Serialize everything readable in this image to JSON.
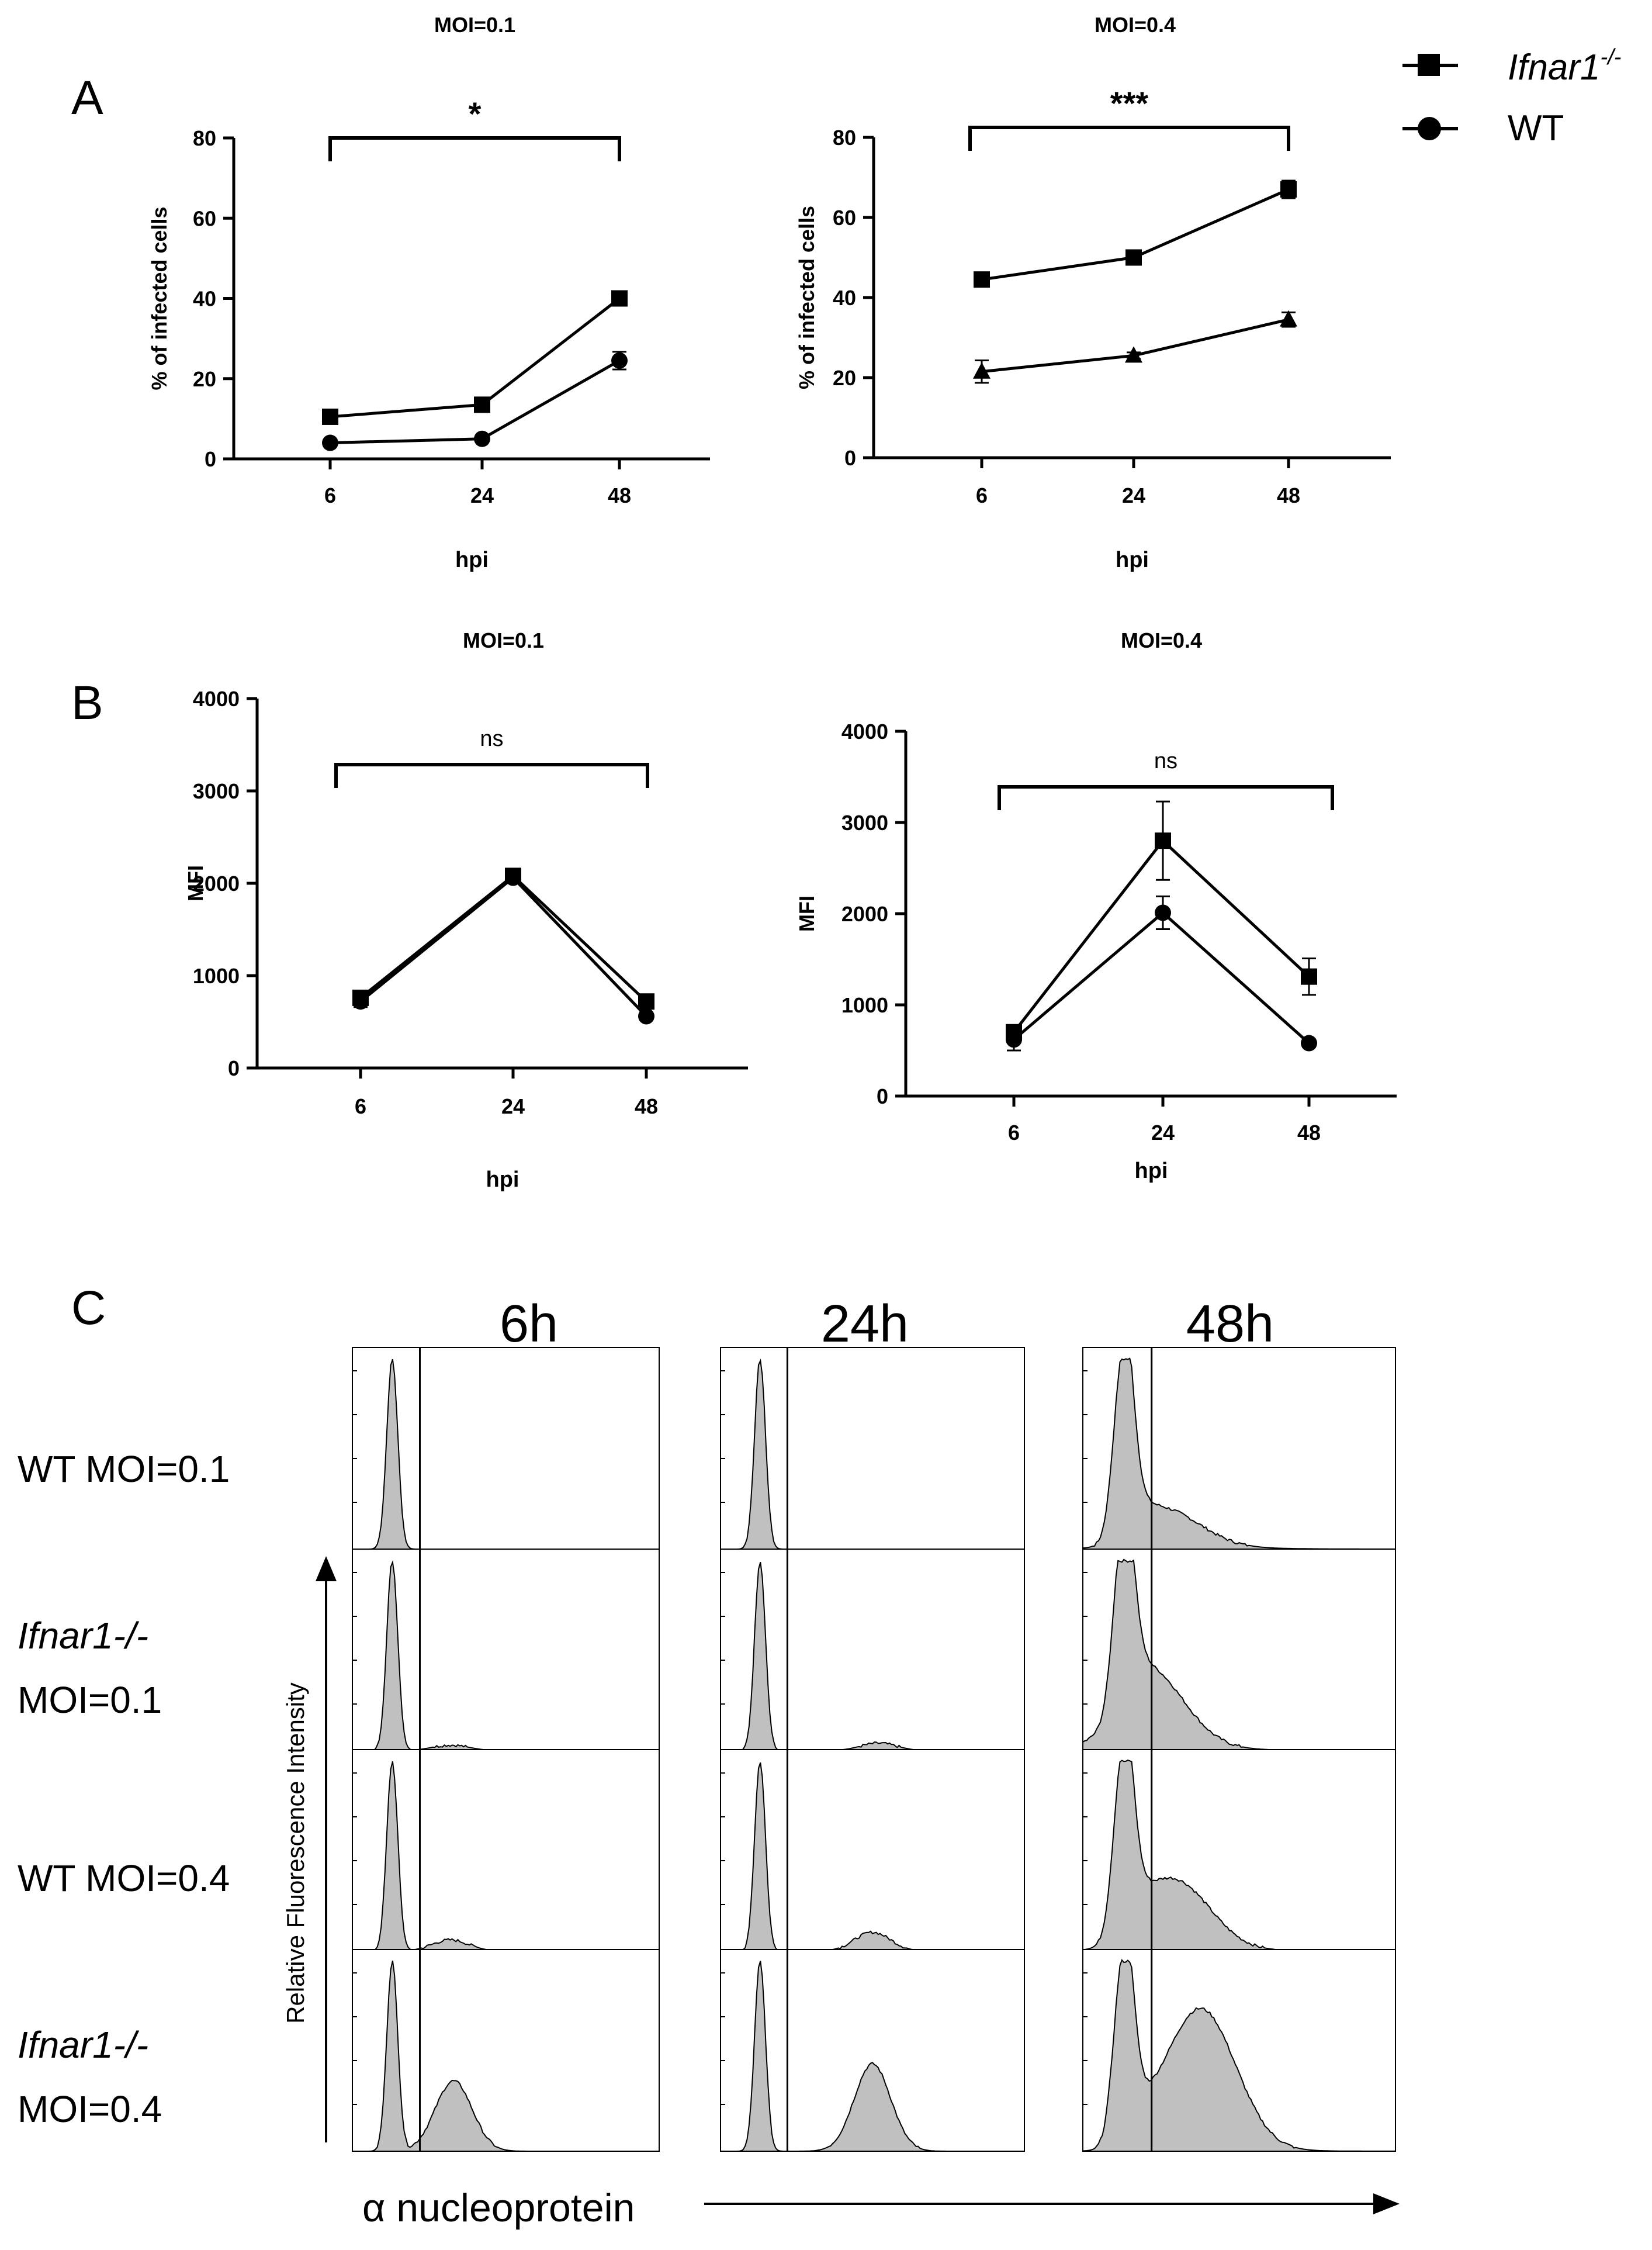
{
  "figure": {
    "legend": {
      "ko_label": "Ifnar1",
      "ko_sup": "-/-",
      "wt_label": "WT"
    },
    "panel_letters": [
      "A",
      "B",
      "C"
    ]
  },
  "chart_data": [
    {
      "id": "A1",
      "panel": "A",
      "type": "line",
      "title": "MOI=0.1",
      "xlabel": "hpi",
      "ylabel": "% of infected cells",
      "categories": [
        "6",
        "24",
        "48"
      ],
      "yticks": [
        0,
        20,
        40,
        60,
        80
      ],
      "ylim": [
        0,
        80
      ],
      "significance": "*",
      "series": [
        {
          "name": "Ifnar1-/-",
          "marker": "square",
          "values": [
            10.5,
            13.5,
            40
          ],
          "errors": [
            0.8,
            0.8,
            1.8
          ]
        },
        {
          "name": "WT",
          "marker": "circle",
          "values": [
            4,
            5,
            24.5
          ],
          "errors": [
            0.5,
            0.6,
            2.2
          ]
        }
      ]
    },
    {
      "id": "A2",
      "panel": "A",
      "type": "line",
      "title": "MOI=0.4",
      "xlabel": "hpi",
      "ylabel": "% of infected cells",
      "categories": [
        "6",
        "24",
        "48"
      ],
      "yticks": [
        0,
        20,
        40,
        60,
        80
      ],
      "ylim": [
        0,
        80
      ],
      "significance": "***",
      "series": [
        {
          "name": "Ifnar1-/-",
          "marker": "square",
          "values": [
            44.5,
            50,
            67
          ],
          "errors": [
            0.8,
            0.8,
            2.2
          ]
        },
        {
          "name": "WT",
          "marker": "triangle",
          "values": [
            21.5,
            25.5,
            34.5
          ],
          "errors": [
            2.8,
            0.8,
            1.8
          ]
        }
      ]
    },
    {
      "id": "B1",
      "panel": "B",
      "type": "line",
      "title": "MOI=0.1",
      "xlabel": "hpi",
      "ylabel": "MFI",
      "categories": [
        "6",
        "24",
        "48"
      ],
      "yticks": [
        0,
        1000,
        2000,
        3000,
        4000
      ],
      "ylim": [
        0,
        4000
      ],
      "significance": "ns",
      "series": [
        {
          "name": "Ifnar1-/-",
          "marker": "square",
          "values": [
            760,
            2080,
            720
          ],
          "errors": [
            60,
            40,
            40
          ]
        },
        {
          "name": "WT",
          "marker": "circle",
          "values": [
            720,
            2060,
            560
          ],
          "errors": [
            60,
            40,
            40
          ]
        }
      ]
    },
    {
      "id": "B2",
      "panel": "B",
      "type": "line",
      "title": "MOI=0.4",
      "xlabel": "hpi",
      "ylabel": "MFI",
      "categories": [
        "6",
        "24",
        "48"
      ],
      "yticks": [
        0,
        1000,
        2000,
        3000,
        4000
      ],
      "ylim": [
        0,
        4000
      ],
      "significance": "ns",
      "series": [
        {
          "name": "Ifnar1-/-",
          "marker": "square",
          "values": [
            700,
            2800,
            1310
          ],
          "errors": [
            80,
            430,
            200
          ]
        },
        {
          "name": "WT",
          "marker": "circle",
          "values": [
            620,
            2010,
            580
          ],
          "errors": [
            120,
            180,
            40
          ]
        }
      ]
    },
    {
      "id": "C",
      "panel": "C",
      "type": "histogram-grid",
      "col_labels": [
        "6h",
        "24h",
        "48h"
      ],
      "rows": [
        {
          "label_lines": [
            "WT MOI=0.1"
          ],
          "italic_first": false
        },
        {
          "label_lines": [
            "Ifnar1-/-",
            "MOI=0.1"
          ],
          "italic_first": true
        },
        {
          "label_lines": [
            "WT MOI=0.4"
          ],
          "italic_first": false
        },
        {
          "label_lines": [
            "Ifnar1-/-",
            "MOI=0.4"
          ],
          "italic_first": true
        }
      ],
      "ylabel": "Relative Fluorescence Intensity",
      "xlabel": "α nucleoprotein",
      "gate_fraction": 0.22,
      "peak_fraction": 0.13,
      "positive_population": [
        [
          {
            "h": 0.0,
            "p": 0.5
          },
          {
            "h": 0.0,
            "p": 0.5
          },
          {
            "h": 0.14,
            "p": 0.28
          }
        ],
        [
          {
            "h": 0.03,
            "p": 0.32
          },
          {
            "h": 0.04,
            "p": 0.52
          },
          {
            "h": 0.33,
            "p": 0.22
          }
        ],
        [
          {
            "h": 0.06,
            "p": 0.32
          },
          {
            "h": 0.1,
            "p": 0.5
          },
          {
            "h": 0.32,
            "p": 0.3
          }
        ],
        [
          {
            "h": 0.37,
            "p": 0.33
          },
          {
            "h": 0.46,
            "p": 0.5
          },
          {
            "h": 0.72,
            "p": 0.38
          }
        ]
      ]
    }
  ]
}
